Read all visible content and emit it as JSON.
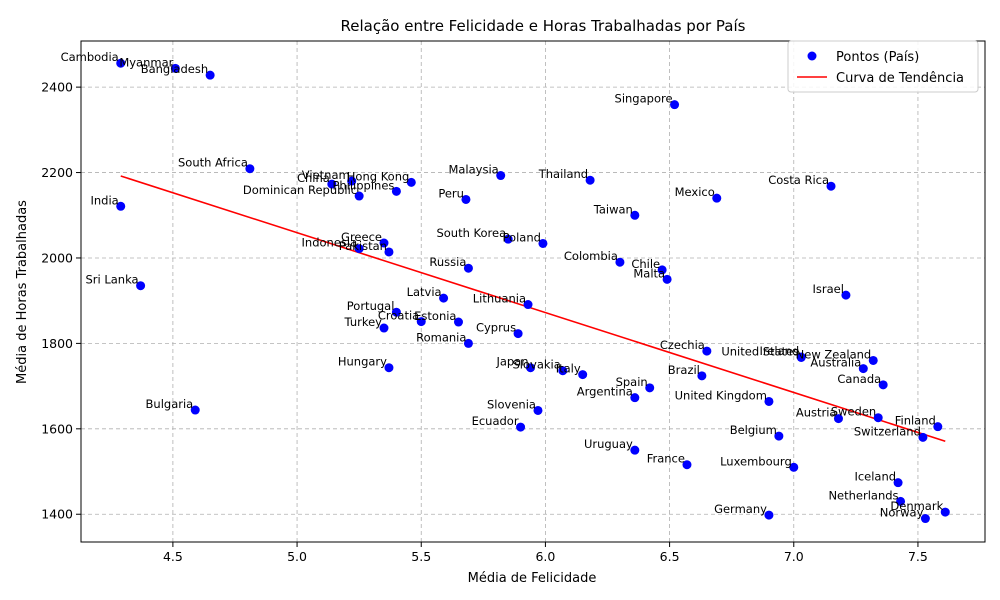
{
  "chart_data": {
    "type": "scatter",
    "title": "Relação entre Felicidade e Horas Trabalhadas por País",
    "xlabel": "Média de Felicidade",
    "ylabel": "Média de Horas Trabalhadas",
    "xlim": [
      4.13,
      7.77
    ],
    "ylim": [
      1335,
      2508
    ],
    "xticks": [
      4.5,
      5.0,
      5.5,
      6.0,
      6.5,
      7.0,
      7.5
    ],
    "xtick_labels": [
      "4.5",
      "5.0",
      "5.5",
      "6.0",
      "6.5",
      "7.0",
      "7.5"
    ],
    "yticks": [
      1400,
      1600,
      1800,
      2000,
      2200,
      2400
    ],
    "ytick_labels": [
      "1400",
      "1600",
      "1800",
      "2000",
      "2200",
      "2400"
    ],
    "grid": true,
    "legend_position": "top-right",
    "colors": {
      "points": "#0000ff",
      "trend": "#ff0000"
    },
    "series": [
      {
        "name": "Pontos (País)",
        "kind": "scatter",
        "points": [
          {
            "label": "Cambodia",
            "x": 4.29,
            "y": 2456
          },
          {
            "label": "Myanmar",
            "x": 4.51,
            "y": 2444
          },
          {
            "label": "Bangladesh",
            "x": 4.65,
            "y": 2428
          },
          {
            "label": "Singapore",
            "x": 6.52,
            "y": 2359
          },
          {
            "label": "South Africa",
            "x": 4.81,
            "y": 2209
          },
          {
            "label": "Vietnam",
            "x": 5.22,
            "y": 2180
          },
          {
            "label": "Hong Kong",
            "x": 5.46,
            "y": 2177
          },
          {
            "label": "China",
            "x": 5.14,
            "y": 2173
          },
          {
            "label": "Philippines",
            "x": 5.4,
            "y": 2156
          },
          {
            "label": "Dominican Republic",
            "x": 5.25,
            "y": 2145
          },
          {
            "label": "Malaysia",
            "x": 5.82,
            "y": 2193
          },
          {
            "label": "Thailand",
            "x": 6.18,
            "y": 2182
          },
          {
            "label": "Peru",
            "x": 5.68,
            "y": 2137
          },
          {
            "label": "Mexico",
            "x": 6.69,
            "y": 2140
          },
          {
            "label": "Costa Rica",
            "x": 7.15,
            "y": 2168
          },
          {
            "label": "India",
            "x": 4.29,
            "y": 2121
          },
          {
            "label": "Taiwan",
            "x": 6.36,
            "y": 2100
          },
          {
            "label": "South Korea",
            "x": 5.85,
            "y": 2044
          },
          {
            "label": "Poland",
            "x": 5.99,
            "y": 2034
          },
          {
            "label": "Greece",
            "x": 5.35,
            "y": 2035
          },
          {
            "label": "Indonesia",
            "x": 5.25,
            "y": 2022
          },
          {
            "label": "Pakistan",
            "x": 5.37,
            "y": 2014
          },
          {
            "label": "Colombia",
            "x": 6.3,
            "y": 1990
          },
          {
            "label": "Russia",
            "x": 5.69,
            "y": 1976
          },
          {
            "label": "Chile",
            "x": 6.47,
            "y": 1972
          },
          {
            "label": "Malta",
            "x": 6.49,
            "y": 1950
          },
          {
            "label": "Sri Lanka",
            "x": 4.37,
            "y": 1935
          },
          {
            "label": "Israel",
            "x": 7.21,
            "y": 1913
          },
          {
            "label": "Latvia",
            "x": 5.59,
            "y": 1906
          },
          {
            "label": "Lithuania",
            "x": 5.93,
            "y": 1891
          },
          {
            "label": "Portugal",
            "x": 5.4,
            "y": 1873
          },
          {
            "label": "Croatia",
            "x": 5.5,
            "y": 1851
          },
          {
            "label": "Estonia",
            "x": 5.65,
            "y": 1850
          },
          {
            "label": "Turkey",
            "x": 5.35,
            "y": 1836
          },
          {
            "label": "Cyprus",
            "x": 5.89,
            "y": 1823
          },
          {
            "label": "Romania",
            "x": 5.69,
            "y": 1800
          },
          {
            "label": "Czechia",
            "x": 6.65,
            "y": 1782
          },
          {
            "label": "United States",
            "x": 7.03,
            "y": 1767
          },
          {
            "label": "Ireland",
            "x": 7.03,
            "y": 1768
          },
          {
            "label": "New Zealand",
            "x": 7.32,
            "y": 1760
          },
          {
            "label": "Australia",
            "x": 7.28,
            "y": 1741
          },
          {
            "label": "Hungary",
            "x": 5.37,
            "y": 1743
          },
          {
            "label": "Japan",
            "x": 5.94,
            "y": 1743
          },
          {
            "label": "Slovakia",
            "x": 6.07,
            "y": 1736
          },
          {
            "label": "Italy",
            "x": 6.15,
            "y": 1727
          },
          {
            "label": "Brazil",
            "x": 6.63,
            "y": 1724
          },
          {
            "label": "Canada",
            "x": 7.36,
            "y": 1703
          },
          {
            "label": "Spain",
            "x": 6.42,
            "y": 1696
          },
          {
            "label": "Argentina",
            "x": 6.36,
            "y": 1673
          },
          {
            "label": "United Kingdom",
            "x": 6.9,
            "y": 1664
          },
          {
            "label": "Bulgaria",
            "x": 4.59,
            "y": 1644
          },
          {
            "label": "Slovenia",
            "x": 5.97,
            "y": 1643
          },
          {
            "label": "Austria",
            "x": 7.18,
            "y": 1624
          },
          {
            "label": "Sweden",
            "x": 7.34,
            "y": 1626
          },
          {
            "label": "Finland",
            "x": 7.58,
            "y": 1605
          },
          {
            "label": "Ecuador",
            "x": 5.9,
            "y": 1604
          },
          {
            "label": "Belgium",
            "x": 6.94,
            "y": 1583
          },
          {
            "label": "Switzerland",
            "x": 7.52,
            "y": 1580
          },
          {
            "label": "Uruguay",
            "x": 6.36,
            "y": 1550
          },
          {
            "label": "France",
            "x": 6.57,
            "y": 1516
          },
          {
            "label": "Luxembourg",
            "x": 7.0,
            "y": 1510
          },
          {
            "label": "Iceland",
            "x": 7.42,
            "y": 1474
          },
          {
            "label": "Netherlands",
            "x": 7.43,
            "y": 1430
          },
          {
            "label": "Denmark",
            "x": 7.61,
            "y": 1405
          },
          {
            "label": "Germany",
            "x": 6.9,
            "y": 1398
          },
          {
            "label": "Norway",
            "x": 7.53,
            "y": 1390
          }
        ]
      },
      {
        "name": "Curva de Tendência",
        "kind": "line",
        "points": [
          {
            "x": 4.29,
            "y": 2192
          },
          {
            "x": 7.61,
            "y": 1571
          }
        ]
      }
    ]
  }
}
